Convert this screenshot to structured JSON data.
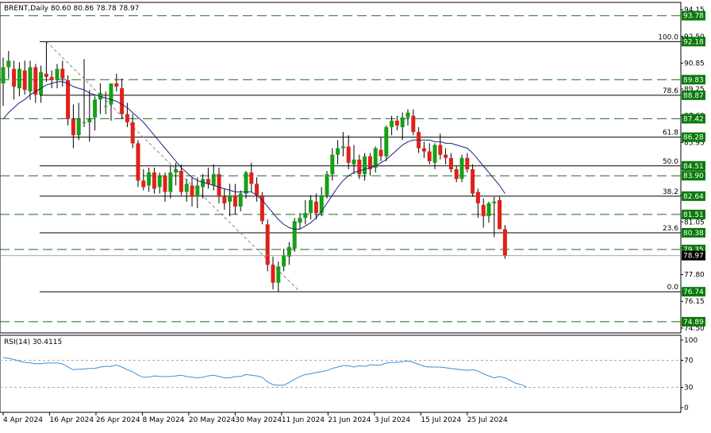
{
  "header": {
    "symbol_text": "BRENT,Daily  80.60 80.86 78.78 78.97",
    "rsi_text": "RSI(14) 30.4115"
  },
  "colors": {
    "bull": "#15a015",
    "bear": "#e0201a",
    "wick": "#000000",
    "level_line": "#1a6b1a",
    "label_bg": "#0a7a0a",
    "ma_line": "#1a237e",
    "rsi_line": "#3a8fd9",
    "grid_dash": "#aaaaaa",
    "current_label_bg": "#000000"
  },
  "price_axis": {
    "tick_labels": [
      "94.15",
      "92.50",
      "90.85",
      "89.25",
      "87.60",
      "85.95",
      "84.35",
      "82.70",
      "81.05",
      "79.45",
      "77.80",
      "76.15",
      "74.50"
    ],
    "tick_values": [
      94.15,
      92.5,
      90.85,
      89.25,
      87.6,
      85.95,
      84.35,
      82.7,
      81.05,
      79.45,
      77.8,
      76.15,
      74.5
    ]
  },
  "rsi_axis": {
    "tick_labels": [
      "100",
      "70",
      "30",
      "0"
    ],
    "tick_values": [
      100,
      70,
      30,
      0
    ],
    "dashed_levels": [
      70,
      30
    ]
  },
  "date_axis": {
    "labels": [
      "4 Apr 2024",
      "16 Apr 2024",
      "26 Apr 2024",
      "8 May 2024",
      "20 May 2024",
      "30 May 2024",
      "11 Jun 2024",
      "21 Jun 2024",
      "3 Jul 2024",
      "15 Jul 2024",
      "25 Jul 2024"
    ]
  },
  "chart_data": {
    "type": "candlestick",
    "symbol": "BRENT",
    "timeframe": "Daily",
    "y_range": [
      74.2,
      94.6
    ],
    "current_price": "78.97",
    "support_resistance_levels": [
      {
        "label": "93.78",
        "value": 93.78,
        "style": "dashed"
      },
      {
        "label": "92.18",
        "value": 92.18,
        "style": "solid"
      },
      {
        "label": "89.83",
        "value": 89.83,
        "style": "dashed"
      },
      {
        "label": "88.87",
        "value": 88.87,
        "style": "solid"
      },
      {
        "label": "87.42",
        "value": 87.42,
        "style": "dashed"
      },
      {
        "label": "86.28",
        "value": 86.28,
        "style": "solid"
      },
      {
        "label": "84.51",
        "value": 84.51,
        "style": "solid"
      },
      {
        "label": "83.90",
        "value": 83.9,
        "style": "dashed"
      },
      {
        "label": "82.64",
        "value": 82.64,
        "style": "solid"
      },
      {
        "label": "81.51",
        "value": 81.51,
        "style": "dashed"
      },
      {
        "label": "80.38",
        "value": 80.38,
        "style": "solid"
      },
      {
        "label": "79.35",
        "value": 79.35,
        "style": "dashed"
      },
      {
        "label": "76.74",
        "value": 76.74,
        "style": "solid"
      },
      {
        "label": "74.89",
        "value": 74.89,
        "style": "dashed"
      }
    ],
    "fibonacci_levels": [
      {
        "label": "100.0",
        "value": 92.18
      },
      {
        "label": "78.6",
        "value": 88.87
      },
      {
        "label": "61.8",
        "value": 86.28
      },
      {
        "label": "50.0",
        "value": 84.51
      },
      {
        "label": "38.2",
        "value": 82.64
      },
      {
        "label": "23.6",
        "value": 80.38
      },
      {
        "label": "0.0",
        "value": 76.74
      }
    ],
    "fib_trendline": {
      "from_index": 8,
      "from_value": 92.18,
      "to_index": 55,
      "to_value": 76.74
    },
    "candles": [
      {
        "o": 89.6,
        "h": 91.2,
        "l": 88.2,
        "c": 90.6
      },
      {
        "o": 90.6,
        "h": 91.6,
        "l": 89.9,
        "c": 91.0
      },
      {
        "o": 90.5,
        "h": 91.0,
        "l": 88.6,
        "c": 89.4
      },
      {
        "o": 89.3,
        "h": 90.9,
        "l": 88.8,
        "c": 90.5
      },
      {
        "o": 90.4,
        "h": 91.0,
        "l": 88.9,
        "c": 89.2
      },
      {
        "o": 89.1,
        "h": 91.0,
        "l": 88.6,
        "c": 90.6
      },
      {
        "o": 90.6,
        "h": 90.8,
        "l": 88.4,
        "c": 88.9
      },
      {
        "o": 88.9,
        "h": 90.7,
        "l": 88.4,
        "c": 90.3
      },
      {
        "o": 90.2,
        "h": 92.18,
        "l": 89.7,
        "c": 90.0
      },
      {
        "o": 90.0,
        "h": 90.4,
        "l": 89.3,
        "c": 89.8
      },
      {
        "o": 89.8,
        "h": 90.8,
        "l": 89.3,
        "c": 90.5
      },
      {
        "o": 90.5,
        "h": 91.0,
        "l": 89.4,
        "c": 89.9
      },
      {
        "o": 89.8,
        "h": 90.1,
        "l": 87.0,
        "c": 87.4
      },
      {
        "o": 87.4,
        "h": 88.3,
        "l": 85.6,
        "c": 86.4
      },
      {
        "o": 86.4,
        "h": 88.4,
        "l": 86.1,
        "c": 87.4
      },
      {
        "o": 87.2,
        "h": 91.1,
        "l": 86.9,
        "c": 87.2
      },
      {
        "o": 87.2,
        "h": 89.2,
        "l": 86.0,
        "c": 87.4
      },
      {
        "o": 87.5,
        "h": 88.8,
        "l": 86.7,
        "c": 88.6
      },
      {
        "o": 88.6,
        "h": 89.6,
        "l": 87.7,
        "c": 89.0
      },
      {
        "o": 88.2,
        "h": 89.1,
        "l": 87.7,
        "c": 88.2
      },
      {
        "o": 88.3,
        "h": 89.6,
        "l": 87.3,
        "c": 89.6
      },
      {
        "o": 89.6,
        "h": 90.2,
        "l": 89.1,
        "c": 89.4
      },
      {
        "o": 89.3,
        "h": 89.9,
        "l": 87.4,
        "c": 87.7
      },
      {
        "o": 87.7,
        "h": 88.4,
        "l": 86.9,
        "c": 87.2
      },
      {
        "o": 87.2,
        "h": 87.7,
        "l": 85.6,
        "c": 85.9
      },
      {
        "o": 85.9,
        "h": 86.1,
        "l": 83.2,
        "c": 83.6
      },
      {
        "o": 83.6,
        "h": 84.3,
        "l": 83.0,
        "c": 83.2
      },
      {
        "o": 83.3,
        "h": 84.4,
        "l": 82.9,
        "c": 84.1
      },
      {
        "o": 84.1,
        "h": 84.4,
        "l": 82.8,
        "c": 83.1
      },
      {
        "o": 83.2,
        "h": 84.1,
        "l": 82.8,
        "c": 83.9
      },
      {
        "o": 83.9,
        "h": 84.1,
        "l": 82.3,
        "c": 82.9
      },
      {
        "o": 82.9,
        "h": 84.5,
        "l": 82.5,
        "c": 84.1
      },
      {
        "o": 84.1,
        "h": 84.7,
        "l": 83.3,
        "c": 84.3
      },
      {
        "o": 84.2,
        "h": 84.6,
        "l": 82.7,
        "c": 82.9
      },
      {
        "o": 82.9,
        "h": 83.7,
        "l": 82.3,
        "c": 83.4
      },
      {
        "o": 83.3,
        "h": 83.8,
        "l": 82.0,
        "c": 82.6
      },
      {
        "o": 82.6,
        "h": 83.8,
        "l": 81.9,
        "c": 83.3
      },
      {
        "o": 83.2,
        "h": 84.0,
        "l": 82.5,
        "c": 83.7
      },
      {
        "o": 83.7,
        "h": 84.4,
        "l": 83.1,
        "c": 83.4
      },
      {
        "o": 83.3,
        "h": 84.6,
        "l": 83.0,
        "c": 84.0
      },
      {
        "o": 84.0,
        "h": 84.4,
        "l": 82.2,
        "c": 82.6
      },
      {
        "o": 82.6,
        "h": 83.1,
        "l": 81.8,
        "c": 82.2
      },
      {
        "o": 82.3,
        "h": 83.4,
        "l": 81.4,
        "c": 82.7
      },
      {
        "o": 82.7,
        "h": 83.4,
        "l": 81.5,
        "c": 82.0
      },
      {
        "o": 82.0,
        "h": 83.0,
        "l": 81.7,
        "c": 82.8
      },
      {
        "o": 82.8,
        "h": 84.2,
        "l": 82.5,
        "c": 84.1
      },
      {
        "o": 84.1,
        "h": 84.7,
        "l": 82.9,
        "c": 83.4
      },
      {
        "o": 83.4,
        "h": 83.8,
        "l": 82.3,
        "c": 82.7
      },
      {
        "o": 82.7,
        "h": 82.9,
        "l": 80.9,
        "c": 81.1
      },
      {
        "o": 80.9,
        "h": 81.2,
        "l": 78.0,
        "c": 78.4
      },
      {
        "o": 78.4,
        "h": 78.9,
        "l": 76.9,
        "c": 77.3
      },
      {
        "o": 77.3,
        "h": 78.6,
        "l": 76.74,
        "c": 78.3
      },
      {
        "o": 78.3,
        "h": 79.4,
        "l": 78.0,
        "c": 79.0
      },
      {
        "o": 78.9,
        "h": 79.8,
        "l": 78.4,
        "c": 79.5
      },
      {
        "o": 79.4,
        "h": 81.3,
        "l": 79.2,
        "c": 81.1
      },
      {
        "o": 81.0,
        "h": 81.6,
        "l": 80.6,
        "c": 81.3
      },
      {
        "o": 81.3,
        "h": 82.4,
        "l": 80.9,
        "c": 81.6
      },
      {
        "o": 81.6,
        "h": 82.7,
        "l": 81.2,
        "c": 82.4
      },
      {
        "o": 82.3,
        "h": 82.8,
        "l": 81.2,
        "c": 81.6
      },
      {
        "o": 81.6,
        "h": 83.2,
        "l": 81.4,
        "c": 82.7
      },
      {
        "o": 82.7,
        "h": 84.2,
        "l": 82.5,
        "c": 84.0
      },
      {
        "o": 84.0,
        "h": 85.6,
        "l": 83.6,
        "c": 85.2
      },
      {
        "o": 85.2,
        "h": 86.1,
        "l": 84.6,
        "c": 85.6
      },
      {
        "o": 85.6,
        "h": 86.6,
        "l": 85.1,
        "c": 85.7
      },
      {
        "o": 85.7,
        "h": 86.4,
        "l": 84.3,
        "c": 84.7
      },
      {
        "o": 84.6,
        "h": 85.8,
        "l": 84.0,
        "c": 84.9
      },
      {
        "o": 84.9,
        "h": 85.2,
        "l": 83.7,
        "c": 84.0
      },
      {
        "o": 84.0,
        "h": 85.3,
        "l": 83.6,
        "c": 85.1
      },
      {
        "o": 85.1,
        "h": 85.3,
        "l": 83.9,
        "c": 84.3
      },
      {
        "o": 84.4,
        "h": 85.7,
        "l": 84.1,
        "c": 85.6
      },
      {
        "o": 85.5,
        "h": 86.3,
        "l": 84.8,
        "c": 85.1
      },
      {
        "o": 85.1,
        "h": 87.0,
        "l": 84.8,
        "c": 86.9
      },
      {
        "o": 86.9,
        "h": 87.6,
        "l": 86.4,
        "c": 87.3
      },
      {
        "o": 87.3,
        "h": 87.6,
        "l": 86.7,
        "c": 87.0
      },
      {
        "o": 86.9,
        "h": 87.8,
        "l": 86.1,
        "c": 87.5
      },
      {
        "o": 87.5,
        "h": 88.0,
        "l": 87.0,
        "c": 87.8
      },
      {
        "o": 87.6,
        "h": 88.0,
        "l": 86.4,
        "c": 86.6
      },
      {
        "o": 86.6,
        "h": 86.9,
        "l": 85.3,
        "c": 85.6
      },
      {
        "o": 85.6,
        "h": 86.0,
        "l": 85.0,
        "c": 85.4
      },
      {
        "o": 85.4,
        "h": 85.9,
        "l": 84.6,
        "c": 84.8
      },
      {
        "o": 84.7,
        "h": 85.9,
        "l": 84.3,
        "c": 85.8
      },
      {
        "o": 85.8,
        "h": 86.5,
        "l": 84.9,
        "c": 85.2
      },
      {
        "o": 85.2,
        "h": 85.6,
        "l": 84.6,
        "c": 85.0
      },
      {
        "o": 85.0,
        "h": 85.3,
        "l": 84.1,
        "c": 84.3
      },
      {
        "o": 84.3,
        "h": 84.5,
        "l": 83.5,
        "c": 83.7
      },
      {
        "o": 83.7,
        "h": 85.2,
        "l": 83.5,
        "c": 85.0
      },
      {
        "o": 85.0,
        "h": 85.3,
        "l": 84.1,
        "c": 84.3
      },
      {
        "o": 84.3,
        "h": 84.6,
        "l": 82.6,
        "c": 82.8
      },
      {
        "o": 82.9,
        "h": 83.1,
        "l": 81.3,
        "c": 82.2
      },
      {
        "o": 82.1,
        "h": 82.5,
        "l": 80.7,
        "c": 81.4
      },
      {
        "o": 81.4,
        "h": 82.3,
        "l": 81.0,
        "c": 82.2
      },
      {
        "o": 82.2,
        "h": 82.6,
        "l": 80.1,
        "c": 82.3
      },
      {
        "o": 82.4,
        "h": 82.6,
        "l": 80.6,
        "c": 80.6
      },
      {
        "o": 80.6,
        "h": 80.86,
        "l": 78.78,
        "c": 78.97
      }
    ],
    "ma_line": {
      "name": "",
      "start_index": 0,
      "values": [
        87.4,
        87.8,
        88.1,
        88.4,
        88.6,
        88.9,
        89.1,
        89.3,
        89.5,
        89.6,
        89.7,
        89.7,
        89.6,
        89.4,
        89.3,
        89.2,
        89.0,
        88.9,
        88.8,
        88.7,
        88.6,
        88.5,
        88.3,
        88.1,
        87.8,
        87.5,
        87.2,
        86.8,
        86.4,
        86.0,
        85.6,
        85.2,
        84.8,
        84.4,
        84.1,
        83.8,
        83.6,
        83.5,
        83.4,
        83.3,
        83.2,
        83.1,
        83.0,
        82.9,
        82.9,
        82.9,
        82.9,
        82.7,
        82.4,
        82.0,
        81.6,
        81.2,
        80.9,
        80.7,
        80.6,
        80.6,
        80.8,
        81.0,
        81.3,
        81.7,
        82.2,
        82.7,
        83.2,
        83.6,
        83.9,
        84.1,
        84.2,
        84.3,
        84.4,
        84.5,
        84.7,
        84.9,
        85.2,
        85.5,
        85.8,
        86.0,
        86.1,
        86.1,
        86.1,
        86.1,
        86.0,
        86.0,
        85.9,
        85.9,
        85.8,
        85.7,
        85.6,
        85.3,
        84.9,
        84.5,
        84.1,
        83.7,
        83.3,
        82.8
      ]
    },
    "rsi": {
      "y_range": [
        0,
        100
      ],
      "values": [
        74,
        73,
        71,
        69,
        67,
        66,
        65,
        65,
        66,
        66,
        66,
        65,
        60,
        56,
        57,
        57,
        58,
        58,
        60,
        61,
        61,
        63,
        60,
        56,
        53,
        48,
        45,
        45,
        47,
        46,
        46,
        46,
        47,
        48,
        46,
        45,
        44,
        45,
        47,
        48,
        46,
        44,
        44,
        46,
        46,
        49,
        48,
        47,
        45,
        38,
        34,
        33,
        33,
        37,
        42,
        46,
        49,
        50,
        52,
        53,
        55,
        58,
        60,
        62,
        62,
        60,
        62,
        61,
        63,
        63,
        63,
        66,
        67,
        67,
        68,
        69,
        67,
        64,
        61,
        60,
        60,
        60,
        59,
        58,
        57,
        56,
        55,
        56,
        54,
        50,
        47,
        44,
        46,
        44,
        40,
        36,
        34,
        30.41
      ]
    }
  }
}
